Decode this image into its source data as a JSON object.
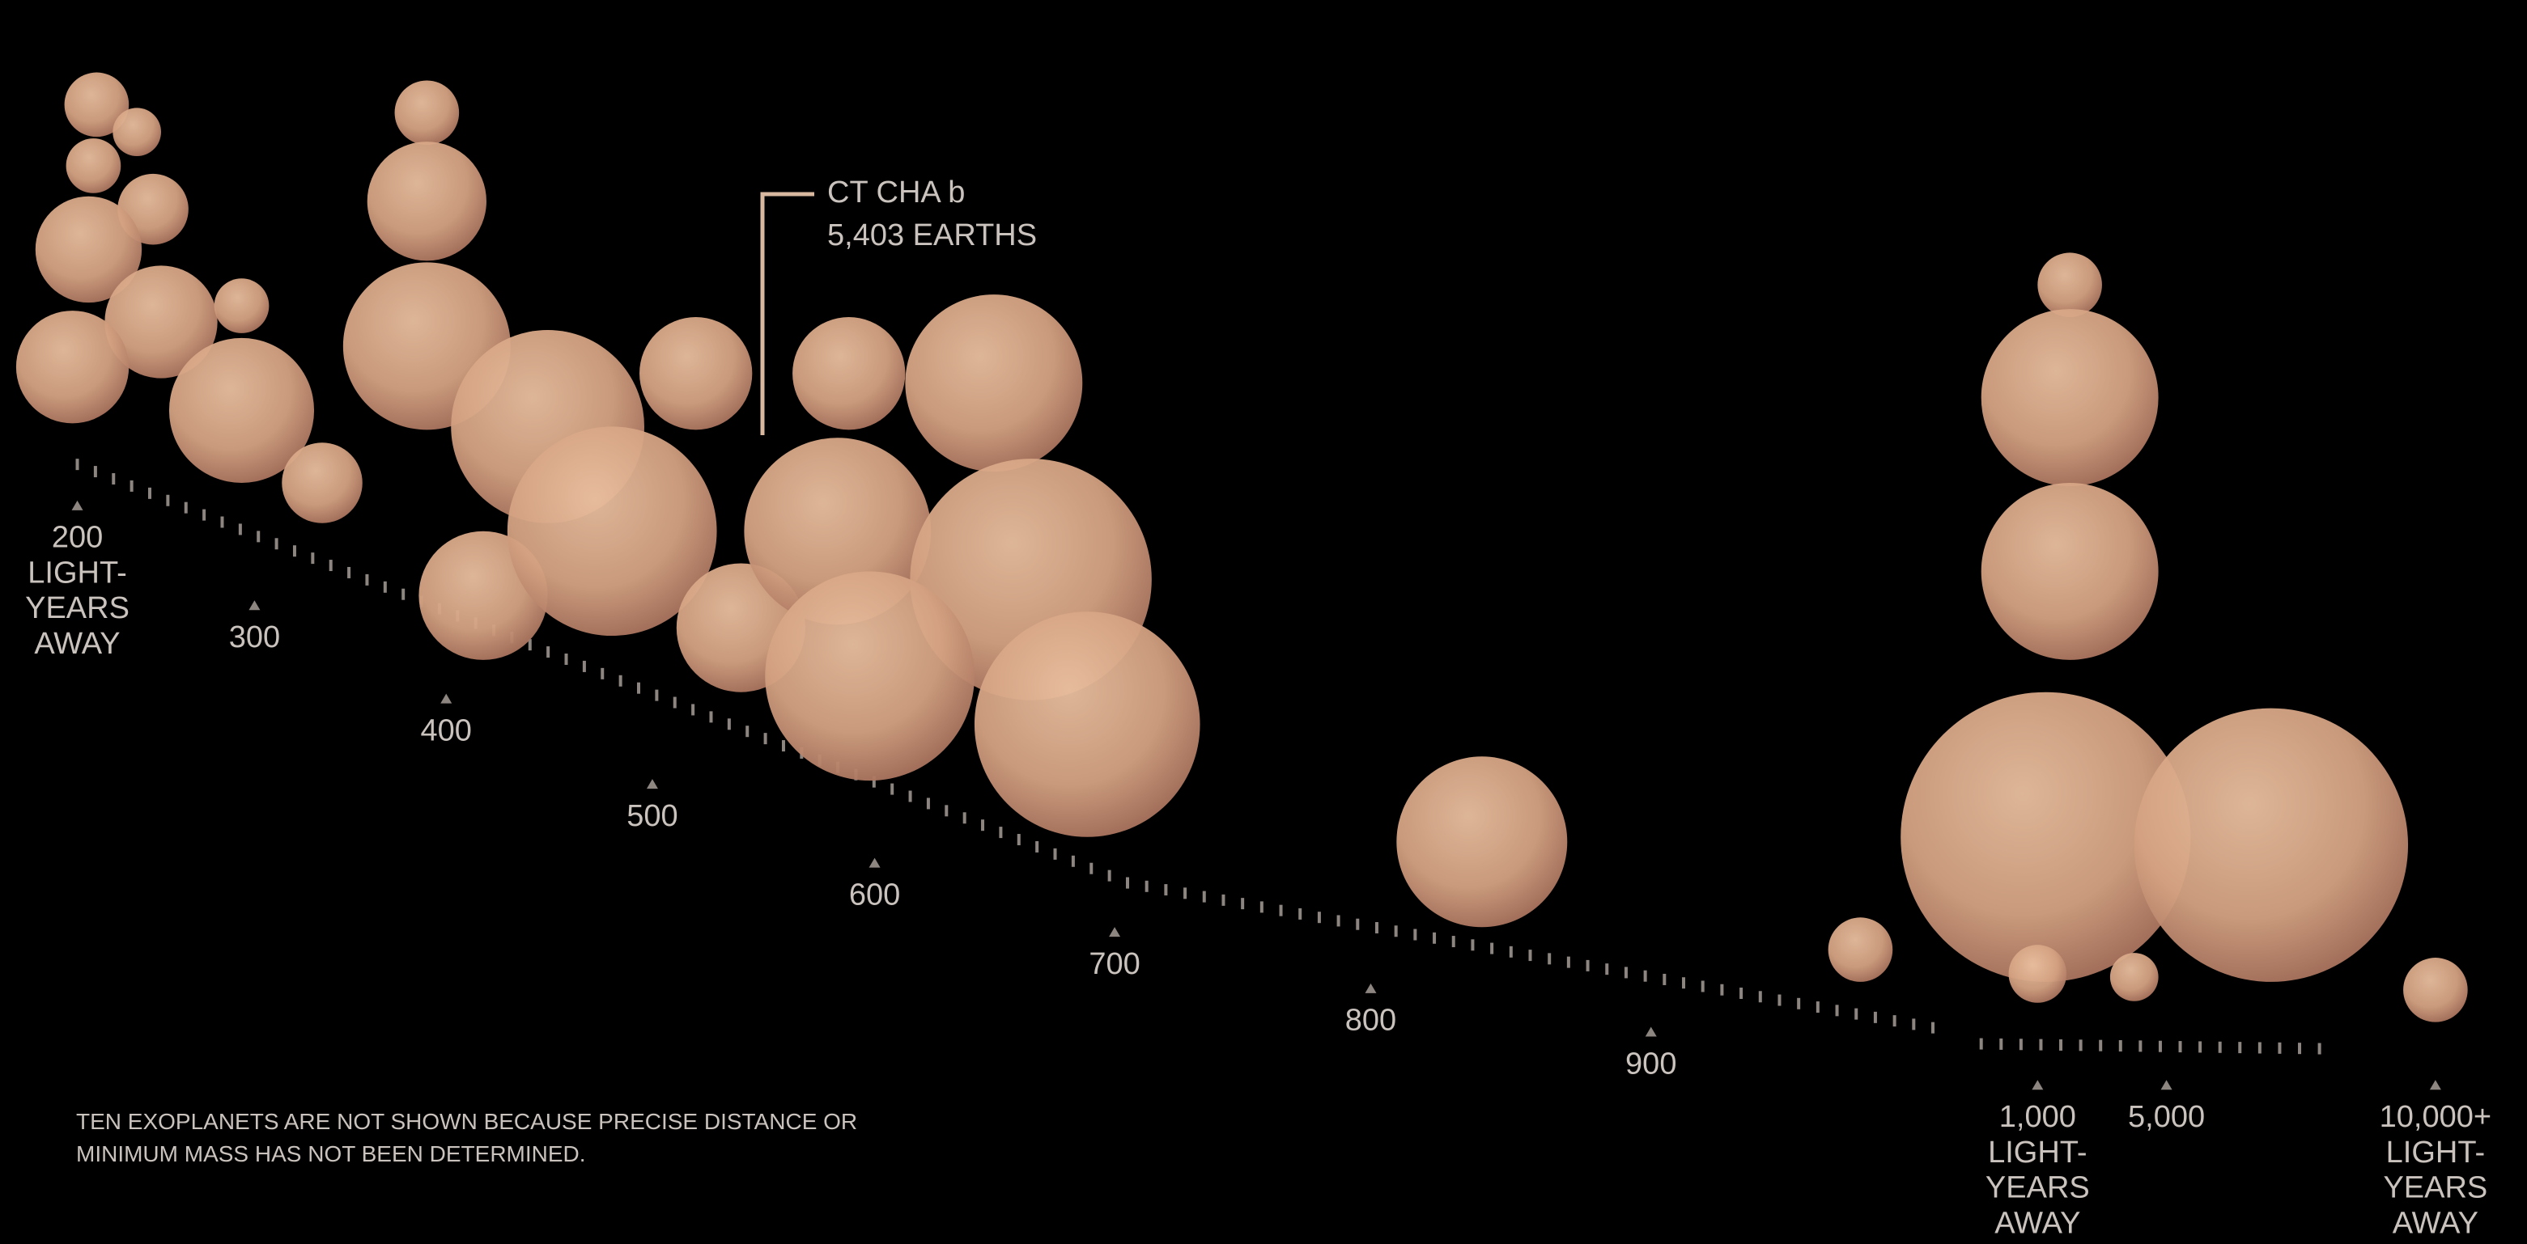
{
  "annotation": {
    "name": "CT CHA b",
    "mass": "5,403 EARTHS"
  },
  "axis_labels": [
    {
      "lines": [
        "200",
        "LIGHT-",
        "YEARS",
        "AWAY"
      ]
    },
    {
      "lines": [
        "300"
      ]
    },
    {
      "lines": [
        "400"
      ]
    },
    {
      "lines": [
        "500"
      ]
    },
    {
      "lines": [
        "600"
      ]
    },
    {
      "lines": [
        "700"
      ]
    },
    {
      "lines": [
        "800"
      ]
    },
    {
      "lines": [
        "900"
      ]
    },
    {
      "lines": [
        "1,000",
        "LIGHT-",
        "YEARS",
        "AWAY"
      ]
    },
    {
      "lines": [
        "5,000"
      ]
    },
    {
      "lines": [
        "10,000+",
        "LIGHT-",
        "YEARS",
        "AWAY"
      ]
    }
  ],
  "footnote": [
    "TEN EXOPLANETS ARE NOT SHOWN BECAUSE PRECISE DISTANCE OR",
    "MINIMUM MASS HAS NOT BEEN DETERMINED."
  ]
}
